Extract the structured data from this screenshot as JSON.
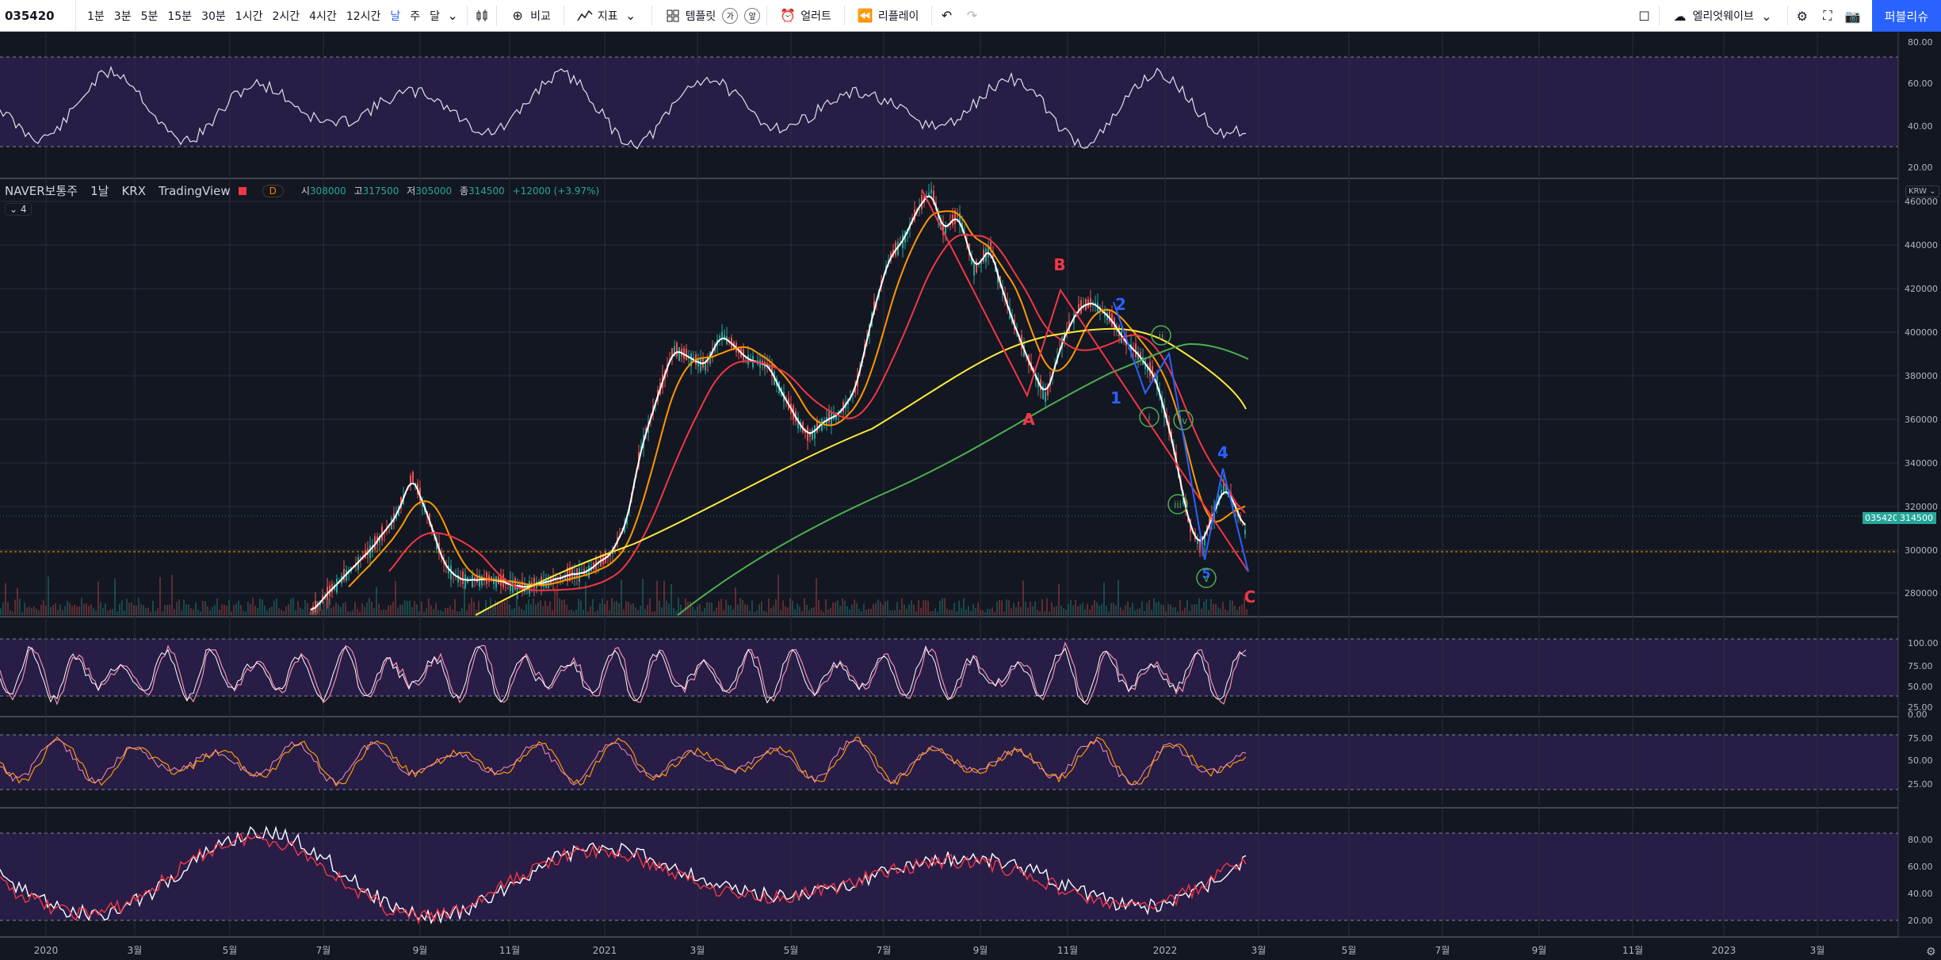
{
  "toolbar": {
    "symbol": "035420",
    "intervals": [
      "1분",
      "3분",
      "5분",
      "15분",
      "30분",
      "1시간",
      "2시간",
      "4시간",
      "12시간",
      "날",
      "주",
      "달"
    ],
    "active_interval": "날",
    "compare_label": "비교",
    "indicators_label": "지표",
    "templates_label": "템플릿",
    "alert_label": "얼러트",
    "replay_label": "리플레이",
    "layout_label": "엘리엇웨이브",
    "publish_label": "퍼블리슈",
    "template_badge_1": "가",
    "template_badge_2": "앞"
  },
  "legend": {
    "symbol_name": "NAVER보통주",
    "interval": "1날",
    "exchange": "KRX",
    "source": "TradingView",
    "pill": "D",
    "open_label": "시",
    "open": "308000",
    "high_label": "고",
    "high": "317500",
    "low_label": "저",
    "low": "305000",
    "close_label": "종",
    "close": "314500",
    "change": "+12000 (+3.97%)",
    "collapse": "4"
  },
  "price_axis": {
    "currency": "KRW",
    "labels": [
      "460000",
      "440000",
      "420000",
      "400000",
      "380000",
      "360000",
      "340000",
      "320000",
      "300000",
      "280000"
    ],
    "last_price": "314500",
    "last_symbol": "035420"
  },
  "rsi_axis": [
    "80.00",
    "60.00",
    "40.00",
    "20.00"
  ],
  "osc_axis_1": [
    "100.00",
    "75.00",
    "50.00",
    "25.00",
    "0.00"
  ],
  "osc_axis_2": [
    "75.00",
    "50.00",
    "25.00"
  ],
  "osc_axis_3": [
    "80.00",
    "60.00",
    "40.00",
    "20.00"
  ],
  "time_axis": [
    "2020",
    "3월",
    "5월",
    "7월",
    "9월",
    "11월",
    "2021",
    "3월",
    "5월",
    "7월",
    "9월",
    "11월",
    "2022",
    "3월",
    "5월",
    "7월",
    "9월",
    "11월",
    "2023",
    "3월"
  ],
  "wave_labels": {
    "A": "A",
    "B": "B",
    "C": "C",
    "w1": "1",
    "w2": "2",
    "w4": "4",
    "w5": "5",
    "ii": "ii",
    "iii": "iii",
    "iv": "iv",
    "i": "i",
    "v": "v"
  },
  "colors": {
    "background": "#131722",
    "panel": "#2a1a4a",
    "up": "#26a69a",
    "down": "#ef5350",
    "ma_orange": "#ff9800",
    "ma_red": "#f23645",
    "ma_yellow": "#ffeb3b",
    "ma_green": "#4caf50",
    "wave_red": "#f23645",
    "wave_blue": "#2962ff"
  }
}
